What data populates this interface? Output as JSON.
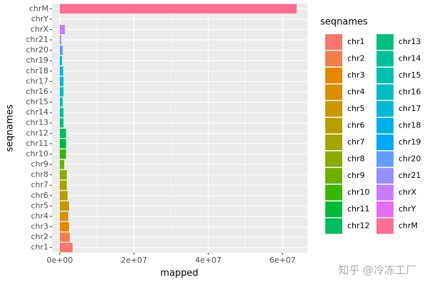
{
  "chart_data": {
    "type": "bar",
    "orientation": "horizontal",
    "x_label": "mapped",
    "y_label": "seqnames",
    "legend_title": "seqnames",
    "categories": [
      "chr1",
      "chr2",
      "chr3",
      "chr4",
      "chr5",
      "chr6",
      "chr7",
      "chr8",
      "chr9",
      "chr10",
      "chr11",
      "chr12",
      "chr13",
      "chr14",
      "chr15",
      "chr16",
      "chr17",
      "chr18",
      "chr19",
      "chr20",
      "chr21",
      "chrX",
      "chrY",
      "chrM"
    ],
    "values": [
      3450000,
      2700000,
      2500000,
      2300000,
      2500000,
      2100000,
      1900000,
      1900000,
      1200000,
      1700000,
      1700000,
      1700000,
      1000000,
      1000000,
      800000,
      1000000,
      1000000,
      900000,
      600000,
      800000,
      400000,
      1400000,
      0,
      63800000
    ],
    "colors": [
      "#F8766D",
      "#EF7F49",
      "#E58700",
      "#D89000",
      "#C99800",
      "#B79F00",
      "#A3A500",
      "#8BAB00",
      "#6BB100",
      "#39B600",
      "#00BA38",
      "#00BD5F",
      "#00BF7D",
      "#00C097",
      "#00C0AF",
      "#00BDC4",
      "#00B8D7",
      "#00B0E8",
      "#00A9FF",
      "#619CFF",
      "#9590FF",
      "#C77CFF",
      "#E76BF3",
      "#FF6C91"
    ],
    "legend_colors": [
      "#F8766D",
      "#EF7F49",
      "#E58700",
      "#D89000",
      "#C99800",
      "#B79F00",
      "#A3A500",
      "#8BAB00",
      "#6BB100",
      "#39B600",
      "#00BA38",
      "#00BD5F",
      "#00BF7D",
      "#00C097",
      "#00C0AF",
      "#00BDC4",
      "#00B8D7",
      "#00B0E8",
      "#00A9FF",
      "#619CFF",
      "#9590FF",
      "#C77CFF",
      "#E76BF3",
      "#FF6C91"
    ],
    "xlim": [
      -2100000,
      66700000
    ],
    "xticks": [
      {
        "value": 0,
        "label": "0e+00"
      },
      {
        "value": 20000000,
        "label": "2e+07"
      },
      {
        "value": 40000000,
        "label": "4e+07"
      },
      {
        "value": 60000000,
        "label": "6e+07"
      }
    ],
    "grid": true,
    "watermark": "知乎 @冷冻工厂"
  }
}
